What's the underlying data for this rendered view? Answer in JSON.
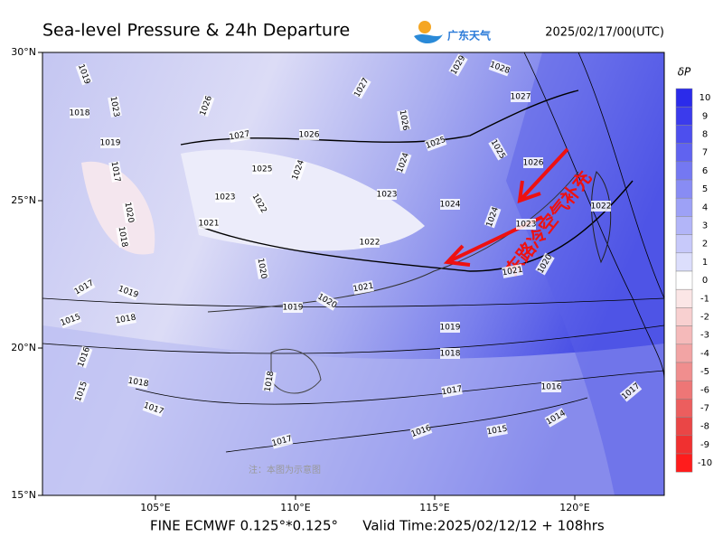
{
  "header": {
    "title": "Sea-level Pressure & 24h Departure",
    "logo_text": "广东天气",
    "date": "2025/02/17/00(UTC)"
  },
  "map": {
    "lat_labels": [
      "30°N",
      "25°N",
      "20°N",
      "15°N"
    ],
    "lon_labels": [
      "105°E",
      "110°E",
      "115°E",
      "120°E"
    ],
    "contour_labels": [
      "1029",
      "1028",
      "1027",
      "1027",
      "1019",
      "1018",
      "1023",
      "1026",
      "1026",
      "1027",
      "1026",
      "1025",
      "1025",
      "1019",
      "1026",
      "1017",
      "1025",
      "1024",
      "1024",
      "1023",
      "1022",
      "1023",
      "1024",
      "1020",
      "1021",
      "1024",
      "1023",
      "1022",
      "1018",
      "1022",
      "1021",
      "1020",
      "1017",
      "1019",
      "1020",
      "1021",
      "1020",
      "1019",
      "1015",
      "1018",
      "1019",
      "1016",
      "1018",
      "1018",
      "1018",
      "1015",
      "1017",
      "1017",
      "1016",
      "1014",
      "1017",
      "1016",
      "1015",
      "1017"
    ],
    "annotation": "东路冷空气补充",
    "watermark": "注：本图为示意图"
  },
  "colorbar": {
    "title": "δP",
    "labels": [
      10,
      9,
      8,
      7,
      6,
      5,
      4,
      3,
      2,
      1,
      0,
      -1,
      -2,
      -3,
      -4,
      -5,
      -6,
      -7,
      -8,
      -9,
      -10
    ],
    "colors": [
      "#2b2bea",
      "#3b3bec",
      "#4d4fee",
      "#6063f0",
      "#7478f2",
      "#888cf4",
      "#9da1f6",
      "#b2b5f8",
      "#c7c9fa",
      "#dcdefc",
      "#ffffff",
      "#fbe6e6",
      "#f8d0d0",
      "#f5baba",
      "#f2a4a4",
      "#f08e8e",
      "#ee7676",
      "#ec5e5e",
      "#ea4646",
      "#f03030",
      "#ff1c1c"
    ]
  },
  "footer": {
    "model": "FINE ECMWF 0.125°*0.125°",
    "valid": "Valid Time:2025/02/12/12 + 108hrs"
  }
}
